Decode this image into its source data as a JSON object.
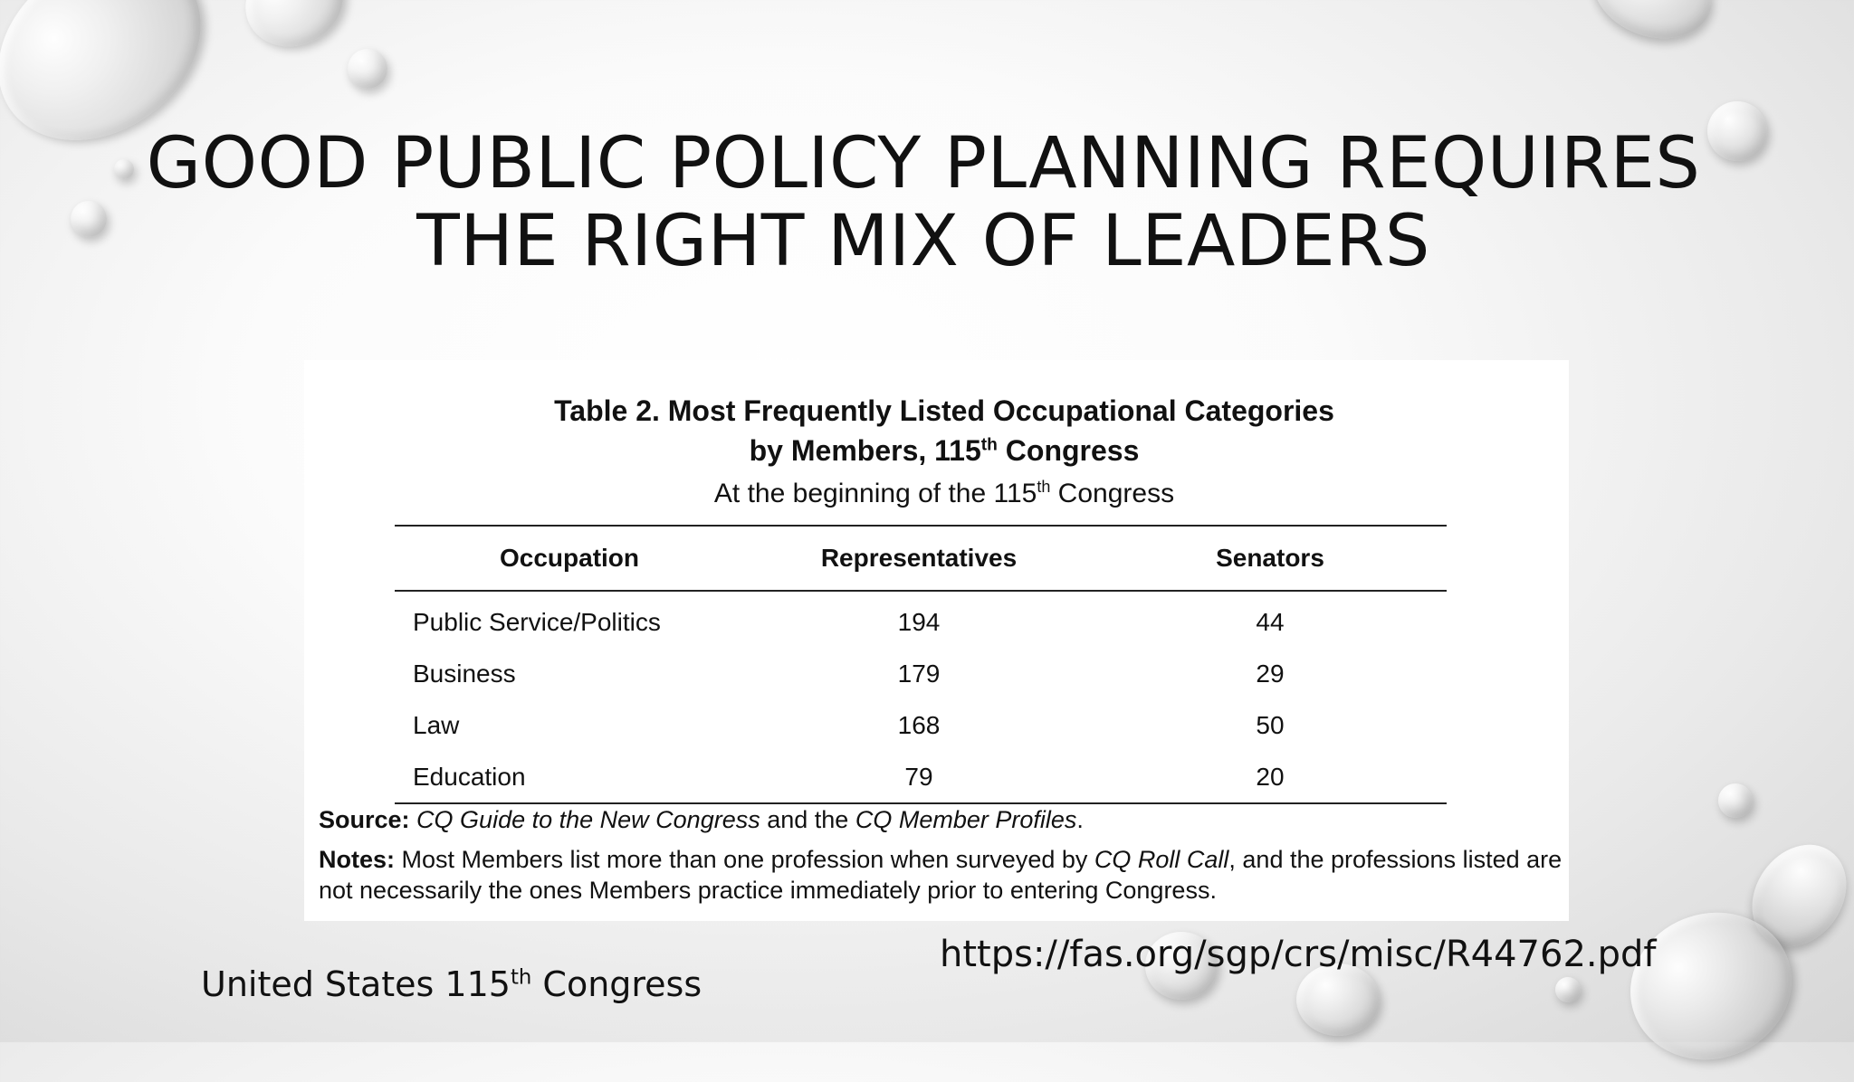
{
  "slide": {
    "title": "GOOD PUBLIC POLICY PLANNING REQUIRES THE RIGHT MIX OF LEADERS",
    "url": "https://fas.org/sgp/crs/misc/R44762.pdf",
    "caption_text": "United States 115",
    "caption_sup": "th",
    "caption_tail": " Congress"
  },
  "table": {
    "title_line1": "Table 2. Most Frequently Listed Occupational Categories",
    "title_line2_pre": "by Members, 115",
    "title_line2_sup": "th",
    "title_line2_post": " Congress",
    "subtitle_pre": "At the beginning of the 115",
    "subtitle_sup": "th",
    "subtitle_post": " Congress",
    "headers": [
      "Occupation",
      "Representatives",
      "Senators"
    ],
    "rows": [
      {
        "occupation": "Public Service/Politics",
        "representatives": "194",
        "senators": "44"
      },
      {
        "occupation": "Business",
        "representatives": "179",
        "senators": "29"
      },
      {
        "occupation": "Law",
        "representatives": "168",
        "senators": "50"
      },
      {
        "occupation": "Education",
        "representatives": "79",
        "senators": "20"
      }
    ],
    "source_label": "Source:",
    "source_part1": "CQ Guide to the New Congress",
    "source_part2": " and the ",
    "source_part3": "CQ Member Profiles",
    "source_part4": ".",
    "notes_label": "Notes:",
    "notes_part1": " Most Members list more than one profession when surveyed by ",
    "notes_part2": "CQ Roll Call",
    "notes_part3": ", and the professions listed are not necessarily the ones Members practice immediately prior to entering Congress."
  }
}
